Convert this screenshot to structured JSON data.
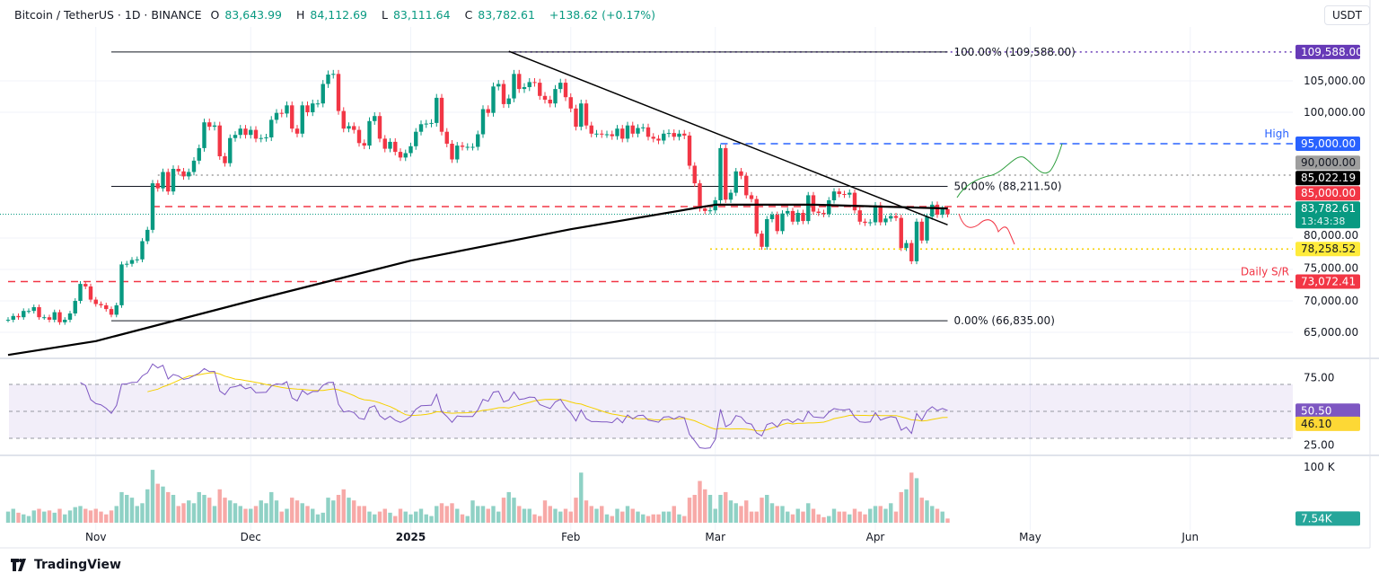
{
  "header": {
    "title": "Bitcoin / TetherUS · 1D · BINANCE",
    "open_label": "O",
    "open": "83,643.99",
    "high_label": "H",
    "high": "84,112.69",
    "low_label": "L",
    "low": "83,111.64",
    "close_label": "C",
    "close": "83,782.61",
    "change": "+138.62 (+0.17%)"
  },
  "currency_button": "USDT",
  "branding": "TradingView",
  "colors": {
    "up": "#089981",
    "down": "#f23645",
    "up_volume": "#8fd1c5",
    "down_volume": "#f7a9a7",
    "rsi": "#7e57c2",
    "rsi_ma": "#f5d000",
    "high_line": "#2962ff",
    "fib_top": "#673ab7"
  },
  "chart_data": {
    "type": "candlestick",
    "symbol": "Bitcoin / TetherUS",
    "interval": "1D",
    "price_axis": {
      "ticks": [
        "105,000.00",
        "100,000.00",
        "80,000.00",
        "75,000.00",
        "70,000.00",
        "65,000.00"
      ],
      "tick_values": [
        105000,
        100000,
        80000,
        75000,
        70000,
        65000
      ],
      "range": [
        61000,
        111000
      ]
    },
    "time_axis": {
      "labels": [
        "Nov",
        "Dec",
        "2025",
        "Feb",
        "Mar",
        "Apr",
        "May",
        "Jun"
      ],
      "label_dates": [
        "2024-11-01",
        "2024-12-01",
        "2025-01-01",
        "2025-02-01",
        "2025-03-01",
        "2025-04-01",
        "2025-05-01",
        "2025-06-01"
      ]
    },
    "candles": [
      {
        "month": "2024-10",
        "first_day": 15,
        "closes": [
          67000,
          67600,
          67400,
          68400,
          68400,
          69000,
          67400,
          67400,
          67000,
          68200,
          66600,
          67000,
          68000,
          70000,
          72700,
          72300,
          70200
        ],
        "volumes_k": [
          20,
          25,
          18,
          15,
          12,
          22,
          25,
          20,
          22,
          18,
          25,
          15,
          22,
          28,
          30,
          25,
          22
        ]
      },
      {
        "month": "2024-11",
        "first_day": 1,
        "closes": [
          69500,
          69300,
          68700,
          67800,
          69300,
          75800,
          75900,
          76500,
          76600,
          79500,
          81300,
          88700,
          87900,
          90500,
          87400,
          91000,
          90600,
          89800,
          90500,
          92300,
          94300,
          98400,
          97700,
          97900,
          93000,
          91900,
          95900,
          96400,
          97400,
          96400
        ],
        "volumes_k": [
          25,
          20,
          15,
          22,
          30,
          55,
          50,
          45,
          30,
          35,
          60,
          95,
          70,
          65,
          55,
          50,
          30,
          35,
          40,
          35,
          55,
          50,
          45,
          30,
          60,
          45,
          40,
          35,
          30,
          25
        ]
      },
      {
        "month": "2024-12",
        "first_day": 1,
        "closes": [
          97200,
          95800,
          95900,
          96000,
          98800,
          99900,
          99800,
          101100,
          97400,
          96600,
          101100,
          100000,
          101400,
          101400,
          104500,
          106000,
          106100,
          100200,
          97400,
          97800,
          97200,
          95100,
          94700,
          98600,
          99400,
          95800,
          94200,
          95300,
          93700,
          92800,
          93500
        ],
        "volumes_k": [
          25,
          30,
          40,
          35,
          55,
          40,
          20,
          25,
          45,
          40,
          35,
          30,
          25,
          15,
          18,
          45,
          40,
          50,
          60,
          45,
          40,
          30,
          30,
          20,
          15,
          20,
          25,
          18,
          12,
          25,
          20
        ]
      },
      {
        "month": "2025-01",
        "first_day": 1,
        "closes": [
          94600,
          96900,
          98100,
          98200,
          98300,
          102300,
          96900,
          95000,
          92500,
          94700,
          94500,
          94500,
          94500,
          96500,
          100500,
          99900,
          104100,
          104500,
          101300,
          102200,
          106100,
          103700,
          104000,
          104800,
          104700,
          102600,
          102000,
          101400,
          103700,
          104700,
          102400
        ],
        "volumes_k": [
          15,
          20,
          25,
          15,
          12,
          30,
          35,
          30,
          35,
          25,
          15,
          12,
          40,
          30,
          30,
          25,
          30,
          20,
          45,
          55,
          45,
          30,
          25,
          25,
          15,
          12,
          40,
          30,
          25,
          20,
          25
        ]
      },
      {
        "month": "2025-02",
        "first_day": 1,
        "closes": [
          100600,
          97700,
          101400,
          97900,
          96600,
          96600,
          96500,
          96500,
          96200,
          97400,
          95800,
          97900,
          96600,
          97500,
          97600,
          96100,
          95800,
          95500,
          96600,
          96700,
          96100,
          96600,
          96300,
          91500,
          88700,
          84700,
          84300,
          84400
        ],
        "volumes_k": [
          20,
          45,
          90,
          40,
          30,
          25,
          30,
          15,
          12,
          25,
          20,
          30,
          25,
          20,
          15,
          12,
          15,
          15,
          20,
          20,
          30,
          15,
          12,
          45,
          50,
          75,
          60,
          50
        ]
      },
      {
        "month": "2025-03",
        "first_day": 1,
        "closes": [
          86000,
          94300,
          86100,
          87200,
          90600,
          89900,
          86800,
          86200,
          80700,
          78600,
          83000,
          83700,
          81100,
          83900,
          84300,
          82600,
          84000,
          82700,
          86800,
          84200,
          84000,
          83800,
          86000,
          87400,
          87000,
          86900,
          87200,
          84400,
          82600,
          82400,
          82500
        ],
        "volumes_k": [
          25,
          50,
          55,
          40,
          35,
          30,
          40,
          20,
          20,
          45,
          50,
          35,
          30,
          30,
          20,
          15,
          25,
          20,
          35,
          25,
          15,
          10,
          12,
          25,
          20,
          20,
          15,
          25,
          20,
          15,
          25
        ]
      },
      {
        "month": "2025-04",
        "first_day": 1,
        "closes": [
          85200,
          82500,
          83100,
          83500,
          83200,
          78400,
          79200,
          76300,
          82600,
          79600,
          83400,
          85300,
          83700,
          84600,
          83782.61
        ],
        "volumes_k": [
          30,
          30,
          25,
          35,
          20,
          55,
          60,
          90,
          80,
          45,
          40,
          30,
          25,
          20,
          7.54
        ]
      }
    ],
    "sma_200": [
      {
        "date": "2024-10-15",
        "value": 61400
      },
      {
        "date": "2024-11-01",
        "value": 63600
      },
      {
        "date": "2024-12-01",
        "value": 70000
      },
      {
        "date": "2025-01-01",
        "value": 76400
      },
      {
        "date": "2025-02-01",
        "value": 81400
      },
      {
        "date": "2025-03-01",
        "value": 85300
      },
      {
        "date": "2025-03-20",
        "value": 85300
      },
      {
        "date": "2025-04-15",
        "value": 84700
      }
    ],
    "trendline": [
      {
        "date": "2025-01-20",
        "value": 109700
      },
      {
        "date": "2025-04-15",
        "value": 82100
      }
    ],
    "fibonacci": {
      "from_date": "2024-11-04",
      "to_date": "2025-04-15",
      "levels": [
        {
          "label": "100.00% (109,588.00)",
          "value": 109588
        },
        {
          "label": "50.00% (88,211.50)",
          "value": 88211.5
        },
        {
          "label": "0.00% (66,835.00)",
          "value": 66835
        }
      ]
    },
    "horizontal_levels": [
      {
        "value": 109588,
        "label": "109,588.00",
        "bg": "#673ab7",
        "fg": "#ffffff",
        "style": "dotted",
        "color": "#673ab7",
        "from_date": "2025-01-20"
      },
      {
        "value": 95000,
        "label": "95,000.00",
        "bg": "#2962ff",
        "fg": "#ffffff",
        "style": "dashed",
        "color": "#2962ff",
        "from_date": "2025-03-02",
        "text": "High"
      },
      {
        "value": 90000,
        "label": "90,000.00",
        "bg": "#9e9e9e",
        "fg": "#131722",
        "style": "dotted",
        "color": "#9e9e9e",
        "from_date": "2024-11-13"
      },
      {
        "value": 85022.19,
        "label": "85,022.19",
        "bg": "#000000",
        "fg": "#ffffff",
        "style": "none"
      },
      {
        "value": 85000,
        "label": "85,000.00",
        "bg": "#f23645",
        "fg": "#ffffff",
        "style": "dashed",
        "color": "#f23645",
        "from_date": "2024-11-12"
      },
      {
        "value": 78258.52,
        "label": "78,258.52",
        "bg": "#ffeb3b",
        "fg": "#131722",
        "style": "dotted",
        "color": "#f5d000",
        "from_date": "2025-02-28"
      },
      {
        "value": 73072.41,
        "label": "73,072.41",
        "bg": "#f23645",
        "fg": "#ffffff",
        "style": "dashed",
        "color": "#f23645",
        "from_date": "2024-10-15",
        "text": "Daily S/R"
      }
    ],
    "last_price": {
      "value": 83782.61,
      "label": "83,782.61",
      "countdown": "13:43:38",
      "bg": "#089981"
    },
    "rsi": {
      "period": 14,
      "ma_period": 14,
      "upper": 70,
      "middle": 50,
      "lower": 30,
      "ticks": [
        "75.00",
        "25.00"
      ],
      "tick_values": [
        75,
        25
      ],
      "value_label": "50.50",
      "ma_label": "46.10",
      "value": 50.5,
      "ma_value": 46.1
    },
    "volume": {
      "tick": "100 K",
      "tick_value": 100,
      "last_label": "7.54K"
    }
  }
}
